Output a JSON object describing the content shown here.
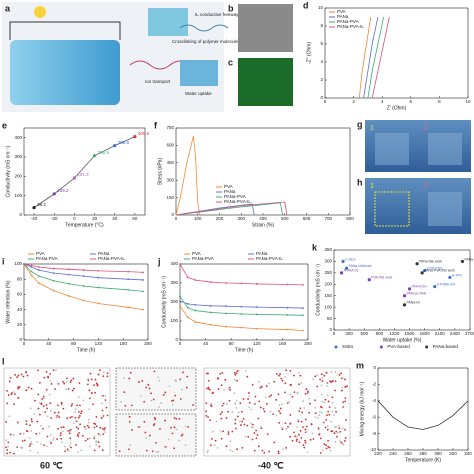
{
  "schematic": {
    "label": "a",
    "texts": [
      "IL conductive freeway",
      "Crosslinking of polymer molecule",
      "Ion transport",
      "Water uptake"
    ]
  },
  "images": [
    {
      "label": "b"
    },
    {
      "label": "c"
    }
  ],
  "photos": [
    {
      "label": "g",
      "tags": [
        "1",
        "2"
      ]
    },
    {
      "label": "h",
      "tags": [
        "1",
        "2"
      ]
    }
  ],
  "simulation": {
    "label": "l",
    "captions": [
      "60 ℃",
      "-40 ℃"
    ]
  },
  "chart_data": [
    {
      "type": "line",
      "label": "d",
      "xlabel": "Z' (Ohm)",
      "ylabel": "-Z'' (Ohm)",
      "xlim": [
        0,
        10
      ],
      "xticks": [
        0,
        2,
        4,
        6,
        8,
        10
      ],
      "ylim": [
        0,
        10
      ],
      "yticks": [
        0,
        2,
        4,
        6,
        8,
        10
      ],
      "legend": "top-left",
      "series": [
        {
          "name": "PVA",
          "color": "#f08a3a",
          "x": [
            2.4,
            2.6,
            2.9,
            3.2
          ],
          "values": [
            0,
            3,
            6,
            9
          ]
        },
        {
          "name": "PANa",
          "color": "#5b6fd6",
          "x": [
            2.7,
            3.0,
            3.3,
            3.7
          ],
          "values": [
            0,
            3,
            6,
            9
          ]
        },
        {
          "name": "PANa-PVA",
          "color": "#3cae6e",
          "x": [
            3.0,
            3.3,
            3.7,
            4.1
          ],
          "values": [
            0,
            3,
            6,
            9
          ]
        },
        {
          "name": "PANa-PVA-IL",
          "color": "#e0507a",
          "x": [
            3.3,
            3.7,
            4.1,
            4.5
          ],
          "values": [
            0,
            3,
            6,
            9
          ]
        }
      ]
    },
    {
      "type": "scatter_line",
      "label": "e",
      "xlabel": "Temperature (°C)",
      "ylabel": "Conductivity (mS cm⁻¹)",
      "xlim": [
        -50,
        70
      ],
      "xticks": [
        -40,
        -20,
        0,
        20,
        40,
        60
      ],
      "ylim": [
        0,
        450
      ],
      "yticks": [
        0,
        100,
        200,
        300,
        400
      ],
      "series": [
        {
          "color": "#555555",
          "x": [
            -40,
            -20,
            0,
            20,
            40,
            60
          ],
          "values": [
            38.2,
            109.2,
            191.3,
            306.9,
            358.8,
            405.6
          ],
          "point_colors": [
            "#222222",
            "#7b3fb5",
            "#c060c0",
            "#3cae6e",
            "#3f6fd0",
            "#e03040"
          ]
        }
      ]
    },
    {
      "type": "line",
      "label": "f",
      "xlabel": "Strain (%)",
      "ylabel": "Stress (kPa)",
      "xlim": [
        0,
        800
      ],
      "xticks": [
        0,
        100,
        200,
        300,
        400,
        500,
        600,
        700,
        800
      ],
      "ylim": [
        0,
        750
      ],
      "yticks": [
        0,
        150,
        300,
        450,
        600,
        750
      ],
      "legend": "bottom-left",
      "series": [
        {
          "name": "PVA",
          "color": "#f08a3a",
          "x": [
            0,
            20,
            50,
            80,
            90,
            100,
            110
          ],
          "values": [
            0,
            150,
            450,
            680,
            500,
            100,
            0
          ]
        },
        {
          "name": "PANa",
          "color": "#5b6fd6",
          "x": [
            0,
            200,
            350,
            360
          ],
          "values": [
            0,
            60,
            95,
            0
          ]
        },
        {
          "name": "PANa-PVA",
          "color": "#3cae6e",
          "x": [
            0,
            300,
            480,
            490
          ],
          "values": [
            0,
            70,
            105,
            0
          ]
        },
        {
          "name": "PANa-PVA-IL",
          "color": "#e0507a",
          "x": [
            0,
            300,
            500,
            510
          ],
          "values": [
            0,
            80,
            112,
            0
          ]
        }
      ]
    },
    {
      "type": "line",
      "label": "i",
      "xlabel": "Time (h)",
      "ylabel": "Water retention (%)",
      "xlim": [
        0,
        200
      ],
      "xticks": [
        0,
        40,
        80,
        120,
        160,
        200
      ],
      "ylim": [
        0,
        100
      ],
      "yticks": [
        0,
        20,
        40,
        60,
        80,
        100
      ],
      "legend": "top",
      "markers": true,
      "series": [
        {
          "name": "PVA",
          "color": "#f08a3a",
          "x": [
            0,
            12,
            24,
            48,
            72,
            96,
            120,
            168,
            192
          ],
          "values": [
            100,
            85,
            75,
            65,
            58,
            52,
            48,
            43,
            40
          ]
        },
        {
          "name": "PANa",
          "color": "#5b6fd6",
          "x": [
            0,
            12,
            24,
            48,
            72,
            96,
            120,
            168,
            192
          ],
          "values": [
            100,
            96,
            92,
            88,
            86,
            84,
            82,
            80,
            79
          ]
        },
        {
          "name": "PANa-PVA",
          "color": "#3cae6e",
          "x": [
            0,
            12,
            24,
            48,
            72,
            96,
            120,
            168,
            192
          ],
          "values": [
            100,
            90,
            84,
            78,
            74,
            71,
            69,
            66,
            64
          ]
        },
        {
          "name": "PANa-PVA-IL",
          "color": "#e0507a",
          "x": [
            0,
            12,
            24,
            48,
            72,
            96,
            120,
            168,
            192
          ],
          "values": [
            100,
            98,
            96,
            94,
            93,
            92,
            91,
            90,
            89
          ]
        }
      ]
    },
    {
      "type": "line",
      "label": "j",
      "xlabel": "Time (h)",
      "ylabel": "Conductivity (mS cm⁻¹)",
      "xlim": [
        0,
        200
      ],
      "xticks": [
        0,
        40,
        80,
        120,
        160,
        200
      ],
      "ylim": [
        0,
        400
      ],
      "yticks": [
        0,
        100,
        200,
        300,
        400
      ],
      "legend": "top",
      "markers": true,
      "series": [
        {
          "name": "PVA",
          "color": "#f08a3a",
          "x": [
            0,
            12,
            24,
            48,
            72,
            96,
            120,
            168,
            192
          ],
          "values": [
            180,
            120,
            95,
            80,
            70,
            65,
            60,
            55,
            50
          ]
        },
        {
          "name": "PANa",
          "color": "#5b6fd6",
          "x": [
            0,
            12,
            24,
            48,
            72,
            96,
            120,
            168,
            192
          ],
          "values": [
            205,
            190,
            185,
            180,
            178,
            175,
            173,
            170,
            168
          ]
        },
        {
          "name": "PANa-PVA",
          "color": "#3cae6e",
          "x": [
            0,
            12,
            24,
            48,
            72,
            96,
            120,
            168,
            192
          ],
          "values": [
            230,
            170,
            155,
            145,
            140,
            137,
            135,
            132,
            130
          ]
        },
        {
          "name": "PANa-PVA-IL",
          "color": "#e0507a",
          "x": [
            0,
            12,
            24,
            48,
            72,
            96,
            120,
            168,
            192
          ],
          "values": [
            400,
            330,
            315,
            305,
            300,
            298,
            295,
            292,
            290
          ]
        }
      ]
    },
    {
      "type": "scatter",
      "label": "k",
      "xlabel": "Water uptake (%)",
      "ylabel": "Conductivity (mS cm⁻¹)",
      "xlim": [
        0,
        2700
      ],
      "xticks": [
        0,
        300,
        600,
        900,
        1200,
        1500,
        1800,
        2100,
        2400,
        2700
      ],
      "ylim": [
        0,
        350
      ],
      "yticks": [
        0,
        50,
        100,
        150,
        200,
        250,
        300,
        350
      ],
      "legend": "bottom",
      "series": [
        {
          "name": "SSEs",
          "color": "#3f6fd0",
          "x": [
            180,
            250,
            1800,
            2000,
            2300
          ],
          "values": [
            300,
            270,
            260,
            190,
            230
          ],
          "point_labels": [
            "C-DEX",
            "PANa-cellulose",
            "CCM-PDE",
            "K-PVAA-GO",
            "A-TPA"
          ]
        },
        {
          "name": "PVA-based",
          "color": "#7b3fb5",
          "x": [
            150,
            700,
            1500,
            1400
          ],
          "values": [
            250,
            220,
            180,
            150
          ],
          "point_labels": [
            "A-PAA-01",
            "PVA-this work",
            "PAA-KOH",
            "PAM-co-PAA"
          ]
        },
        {
          "name": "PANa-based",
          "color": "#333333",
          "x": [
            1650,
            1750,
            2550,
            1400
          ],
          "values": [
            290,
            250,
            300,
            110
          ],
          "point_labels": [
            "PANa-this work",
            "PANa-PVA-this work",
            "PANa-PVA-IL-this work",
            "PANa-IG"
          ]
        }
      ]
    },
    {
      "type": "line",
      "label": "m",
      "xlabel": "Temperature (K)",
      "ylabel": "Mixing energy (kJ mol⁻¹)",
      "xlim": [
        220,
        340
      ],
      "xticks": [
        220,
        240,
        260,
        280,
        300,
        320,
        340
      ],
      "ylim": [
        -10,
        0
      ],
      "yticks": [
        -10,
        -8,
        -6,
        -4,
        -2,
        0
      ],
      "series": [
        {
          "color": "#333333",
          "x": [
            220,
            240,
            260,
            280,
            300,
            320,
            340
          ],
          "values": [
            -4,
            -6,
            -7.2,
            -7.5,
            -7,
            -5.8,
            -4
          ]
        }
      ]
    }
  ]
}
